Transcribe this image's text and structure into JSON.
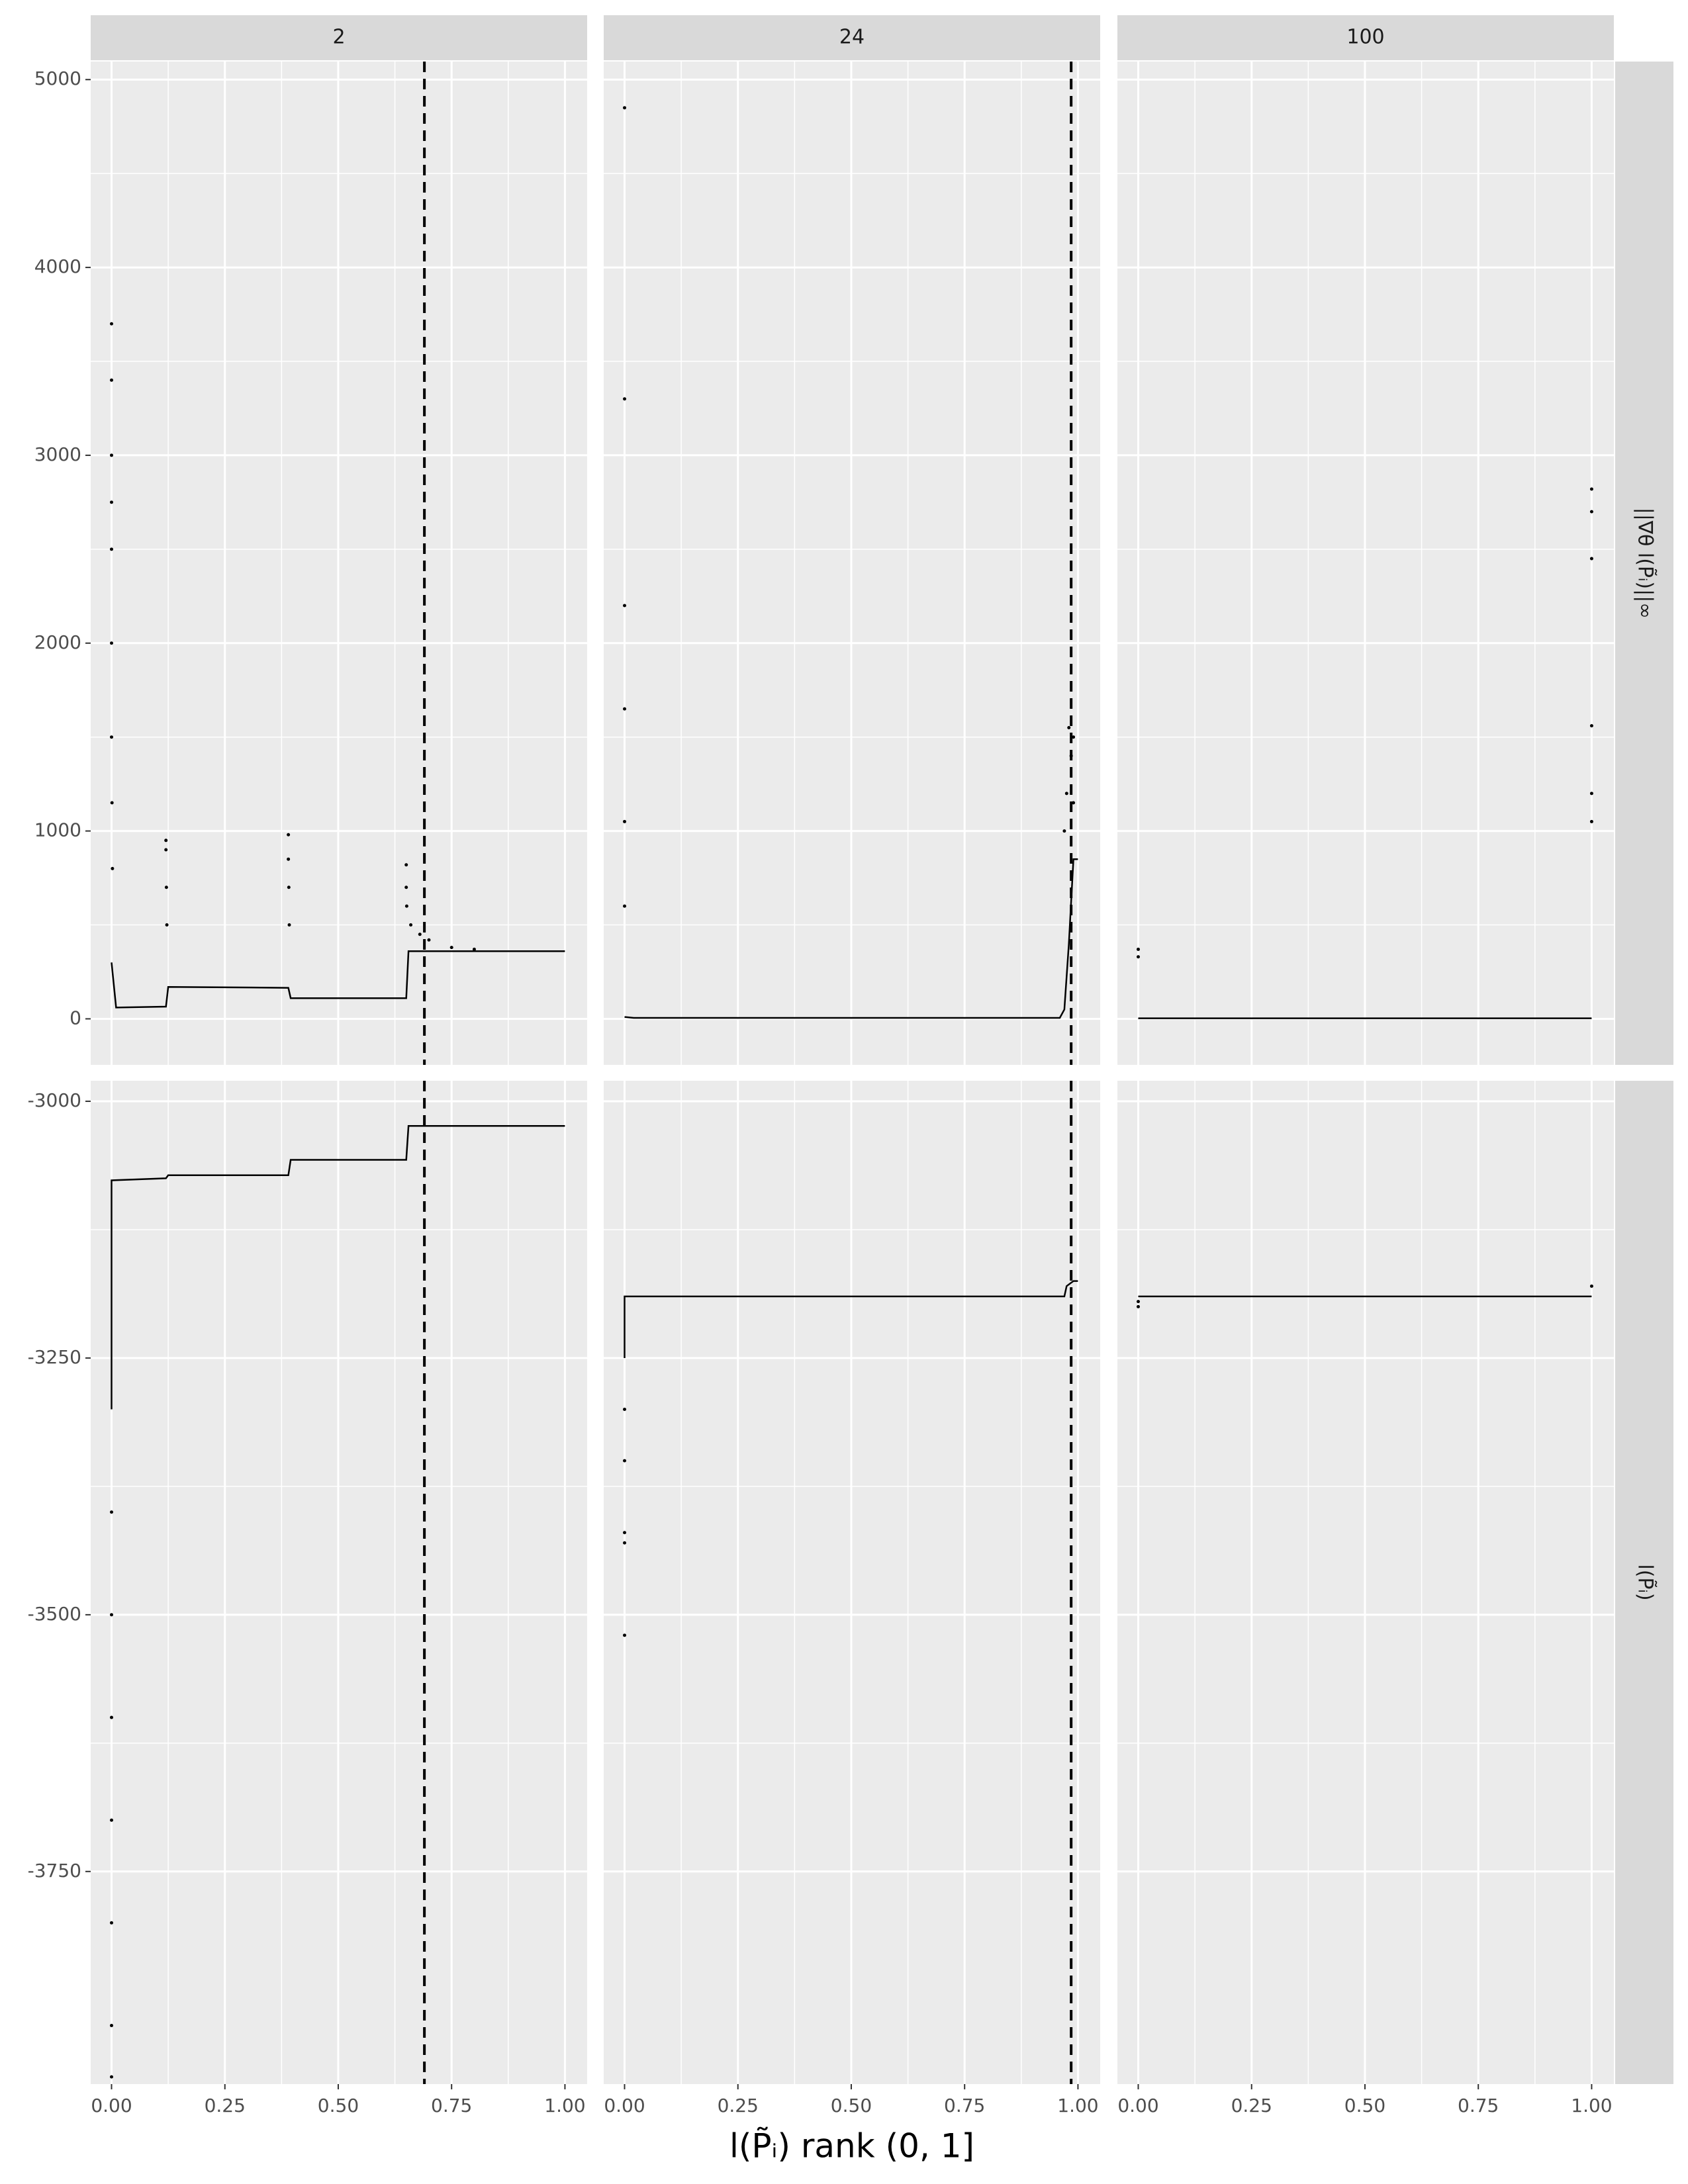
{
  "chart_data": {
    "type": "scatter",
    "x_label": "l(P̃ᵢ)  rank  (0, 1]",
    "color": "#000000",
    "columns": [
      "2",
      "24",
      "100"
    ],
    "xlim": [
      -0.046,
      1.049
    ],
    "xticks": [
      {
        "value": 0,
        "label": "0.00"
      },
      {
        "value": 0.25,
        "label": "0.25"
      },
      {
        "value": 0.5,
        "label": "0.50"
      },
      {
        "value": 0.75,
        "label": "0.75"
      },
      {
        "value": 1,
        "label": "1.00"
      }
    ],
    "grid": true,
    "rows": [
      {
        "label": "||∇θ l(P̃ᵢ)||∞",
        "ylim": [
          -245,
          5096
        ],
        "yticks": [
          0,
          1000,
          2000,
          3000,
          4000,
          5000
        ],
        "panels": [
          {
            "vline": 0.69,
            "line": {
              "x": [
                0,
                0.01,
                0.12,
                0.125,
                0.39,
                0.395,
                0.65,
                0.655,
                1.0
              ],
              "values": [
                300,
                60,
                65,
                170,
                165,
                110,
                110,
                360,
                360
              ]
            },
            "points": {
              "x": [
                0,
                0,
                0,
                0,
                0,
                0,
                0,
                0.001,
                0.002,
                0.12,
                0.12,
                0.121,
                0.122,
                0.39,
                0.39,
                0.391,
                0.392,
                0.65,
                0.65,
                0.651,
                0.66,
                0.68,
                0.7,
                0.75,
                0.8
              ],
              "values": [
                3700,
                3400,
                3000,
                2750,
                2500,
                2000,
                1500,
                1150,
                800,
                950,
                900,
                700,
                500,
                980,
                850,
                700,
                500,
                820,
                700,
                600,
                500,
                450,
                420,
                380,
                370
              ]
            }
          },
          {
            "vline": 0.985,
            "line": {
              "x": [
                0,
                0.02,
                0.96,
                0.97,
                0.98,
                0.99,
                1.0
              ],
              "values": [
                10,
                5,
                5,
                50,
                400,
                850,
                850
              ]
            },
            "points": {
              "x": [
                0,
                0,
                0,
                0,
                0,
                0,
                0.97,
                0.975,
                0.98,
                0.985,
                0.99,
                0.99
              ],
              "values": [
                4850,
                3300,
                2200,
                1650,
                1050,
                600,
                1000,
                1200,
                1550,
                1400,
                1150,
                1500
              ]
            }
          },
          {
            "line": {
              "x": [
                0,
                1
              ],
              "values": [
                3,
                3
              ]
            },
            "points": {
              "x": [
                0,
                0,
                1,
                1,
                1,
                1,
                1,
                1
              ],
              "values": [
                370,
                330,
                2820,
                2700,
                2450,
                1560,
                1200,
                1050
              ]
            }
          }
        ]
      },
      {
        "label": "l(P̃ᵢ)",
        "ylim": [
          -3957,
          -2980
        ],
        "yticks": [
          -3750,
          -3500,
          -3250,
          -3000
        ],
        "panels": [
          {
            "vline": 0.69,
            "line": {
              "x": [
                0,
                0,
                0.12,
                0.125,
                0.39,
                0.395,
                0.65,
                0.655,
                1.0
              ],
              "values": [
                -3300,
                -3077,
                -3075,
                -3072,
                -3072,
                -3057,
                -3057,
                -3024,
                -3024
              ]
            },
            "points": {
              "x": [
                0,
                0,
                0,
                0,
                0,
                0,
                0
              ],
              "values": [
                -3400,
                -3500,
                -3600,
                -3700,
                -3800,
                -3900,
                -3950
              ]
            }
          },
          {
            "vline": 0.985,
            "line": {
              "x": [
                0,
                0,
                0.97,
                0.975,
                0.99,
                1.0
              ],
              "values": [
                -3250,
                -3190,
                -3190,
                -3180,
                -3175,
                -3175
              ]
            },
            "points": {
              "x": [
                0,
                0,
                0,
                0,
                0
              ],
              "values": [
                -3300,
                -3350,
                -3420,
                -3430,
                -3520
              ]
            }
          },
          {
            "line": {
              "x": [
                0,
                1
              ],
              "values": [
                -3190,
                -3190
              ]
            },
            "points": {
              "x": [
                0,
                0,
                1
              ],
              "values": [
                -3200,
                -3195,
                -3180
              ]
            }
          }
        ]
      }
    ]
  }
}
